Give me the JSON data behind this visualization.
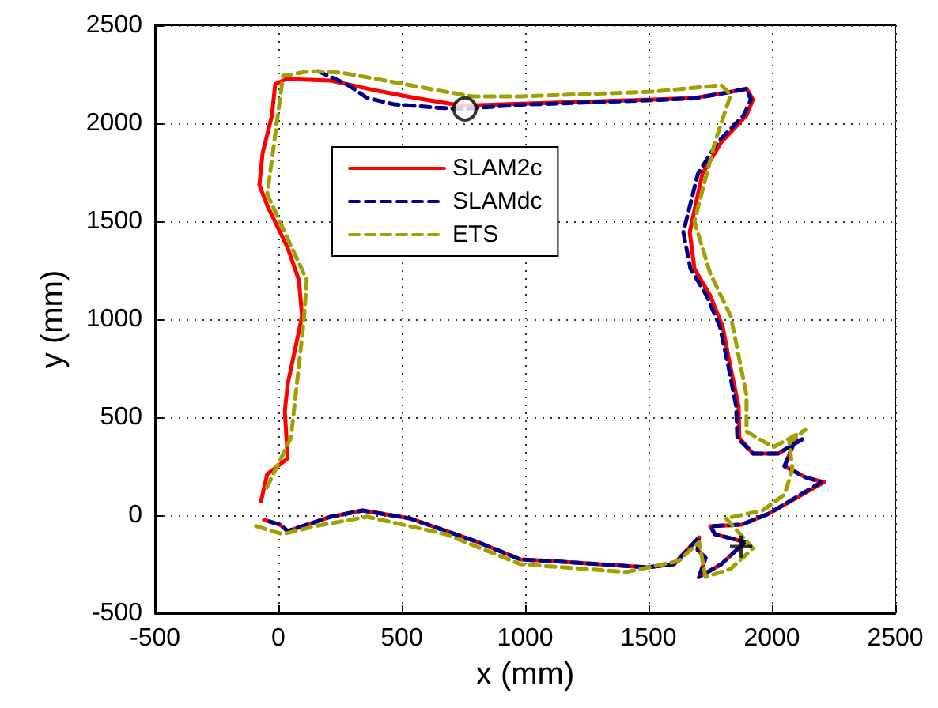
{
  "chart_data": {
    "type": "line",
    "xlabel": "x (mm)",
    "ylabel": "y (mm)",
    "xlim": [
      -500,
      2500
    ],
    "ylim": [
      -500,
      2500
    ],
    "xticks": [
      -500,
      0,
      500,
      1000,
      1500,
      2000,
      2500
    ],
    "yticks": [
      -500,
      0,
      500,
      1000,
      1500,
      2000,
      2500
    ],
    "grid": true,
    "legend": "top",
    "marker": "none",
    "series": [
      {
        "name": "SLAM2c",
        "color": "#ff0000",
        "line_style": "solid",
        "x": [
          -70,
          -45,
          38,
          26,
          38,
          96,
          83,
          38,
          -45,
          -77,
          -64,
          -26,
          -13,
          32,
          212,
          385,
          551,
          744,
          981,
          1109,
          1513,
          1686,
          1833,
          1897,
          1923,
          1897,
          1795,
          1718,
          1667,
          1686,
          1750,
          1801,
          1833,
          1865,
          1868,
          1923,
          2026,
          2122,
          2090,
          2051,
          2135,
          2212,
          1987,
          1878,
          1750,
          1769,
          1891,
          1795,
          1705,
          1731,
          1699,
          1705,
          1603,
          1494,
          1109,
          981,
          808,
          532,
          340,
          212,
          38,
          6,
          -58
        ],
        "values": [
          73,
          210,
          290,
          532,
          670,
          1016,
          1200,
          1363,
          1580,
          1685,
          1847,
          2040,
          2200,
          2226,
          2218,
          2170,
          2130,
          2090,
          2100,
          2105,
          2121,
          2129,
          2160,
          2177,
          2121,
          2040,
          1903,
          1742,
          1444,
          1258,
          1121,
          960,
          750,
          556,
          395,
          315,
          315,
          387,
          371,
          250,
          194,
          169,
          8,
          -48,
          -56,
          -97,
          -137,
          -250,
          -315,
          -218,
          -177,
          -113,
          -250,
          -266,
          -234,
          -226,
          -137,
          -16,
          24,
          -8,
          -81,
          -48,
          -24
        ]
      },
      {
        "name": "SLAMdc",
        "color": "#00008b",
        "line_style": "dashed",
        "x": [
          160,
          276,
          359,
          468,
          641,
          744,
          981,
          1109,
          1513,
          1686,
          1833,
          1897,
          1915,
          1885,
          1780,
          1700,
          1641,
          1670,
          1735,
          1790,
          1825,
          1855,
          1860,
          1923,
          2026,
          2122,
          2090,
          2051,
          2135,
          2200,
          1987,
          1878,
          1750,
          1769,
          1891,
          1795,
          1705,
          1731,
          1699,
          1705,
          1603,
          1494,
          1109,
          981,
          808,
          532,
          340,
          212,
          38,
          6,
          -58
        ],
        "values": [
          2266,
          2200,
          2130,
          2097,
          2080,
          2073,
          2095,
          2100,
          2118,
          2127,
          2160,
          2175,
          2121,
          2040,
          1903,
          1742,
          1444,
          1258,
          1121,
          960,
          750,
          556,
          395,
          315,
          315,
          387,
          371,
          250,
          194,
          169,
          8,
          -48,
          -56,
          -97,
          -137,
          -250,
          -315,
          -218,
          -177,
          -113,
          -250,
          -266,
          -234,
          -226,
          -137,
          -16,
          24,
          -8,
          -81,
          -48,
          -24
        ]
      },
      {
        "name": "ETS",
        "color": "#a0a000",
        "line_style": "dashed",
        "x": [
          -90,
          19,
          147,
          359,
          679,
          981,
          1410,
          1622,
          1705,
          1731,
          1833,
          1923,
          1814,
          1962,
          2051,
          2083,
          2071,
          2135,
          2006,
          1897,
          1897,
          1833,
          1750,
          1686,
          1769,
          1833,
          1795,
          1513,
          981,
          788,
          641,
          468,
          256,
          128,
          19,
          -45,
          64,
          115,
          103,
          51,
          -58
        ],
        "values": [
          -56,
          -97,
          -56,
          -8,
          -97,
          -250,
          -290,
          -234,
          -137,
          -315,
          -274,
          -169,
          -16,
          24,
          105,
          234,
          371,
          435,
          347,
          427,
          613,
          1016,
          1234,
          1500,
          1903,
          2145,
          2194,
          2161,
          2137,
          2137,
          2169,
          2210,
          2258,
          2266,
          2242,
          1637,
          1339,
          1200,
          992,
          395,
          113
        ]
      },
      {
        "type": "scatter",
        "color": "#000000",
        "marker": "circle",
        "x": [
          756
        ],
        "values": [
          2073
        ]
      },
      {
        "type": "scatter",
        "color": "#000000",
        "marker": "cross",
        "x": [
          1875
        ],
        "values": [
          -160
        ]
      }
    ]
  }
}
